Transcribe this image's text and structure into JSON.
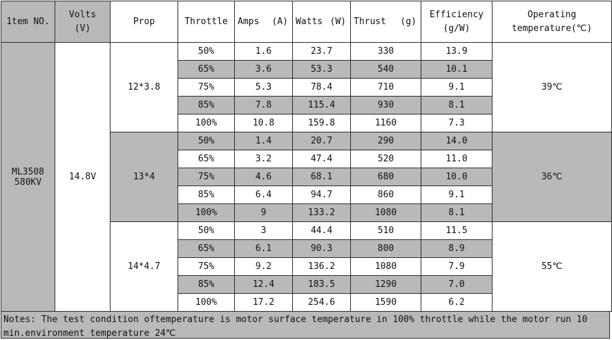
{
  "headers": {
    "item_no": "1tem NO.",
    "volts": "Volts",
    "volts_unit": "(V)",
    "prop": "Prop",
    "throttle": "Throttle",
    "amps": "Amps",
    "amps_unit": "(A)",
    "watts": "Watts",
    "watts_unit": "(W)",
    "thrust": "Thrust",
    "thrust_unit": "(g)",
    "efficiency": "Efficiency",
    "efficiency_unit": "(g/W)",
    "operating_temp_line1": "Operating",
    "operating_temp_line2": "temperature(℃)"
  },
  "item": {
    "model": "ML3508",
    "kv": "580KV",
    "volts": "14.8V"
  },
  "props": [
    {
      "name": "12*3.8",
      "temperature": "39℃",
      "rows": [
        {
          "throttle": "50%",
          "amps": "1.6",
          "watts": "23.7",
          "thrust": "330",
          "efficiency": "13.9"
        },
        {
          "throttle": "65%",
          "amps": "3.6",
          "watts": "53.3",
          "thrust": "540",
          "efficiency": "10.1"
        },
        {
          "throttle": "75%",
          "amps": "5.3",
          "watts": "78.4",
          "thrust": "710",
          "efficiency": "9.1"
        },
        {
          "throttle": "85%",
          "amps": "7.8",
          "watts": "115.4",
          "thrust": "930",
          "efficiency": "8.1"
        },
        {
          "throttle": "100%",
          "amps": "10.8",
          "watts": "159.8",
          "thrust": "1160",
          "efficiency": "7.3"
        }
      ]
    },
    {
      "name": "13*4",
      "temperature": "36℃",
      "rows": [
        {
          "throttle": "50%",
          "amps": "1.4",
          "watts": "20.7",
          "thrust": "290",
          "efficiency": "14.0"
        },
        {
          "throttle": "65%",
          "amps": "3.2",
          "watts": "47.4",
          "thrust": "520",
          "efficiency": "11.0"
        },
        {
          "throttle": "75%",
          "amps": "4.6",
          "watts": "68.1",
          "thrust": "680",
          "efficiency": "10.0"
        },
        {
          "throttle": "85%",
          "amps": "6.4",
          "watts": "94.7",
          "thrust": "860",
          "efficiency": "9.1"
        },
        {
          "throttle": "100%",
          "amps": "9",
          "watts": "133.2",
          "thrust": "1080",
          "efficiency": "8.1"
        }
      ]
    },
    {
      "name": "14*4.7",
      "temperature": "55℃",
      "rows": [
        {
          "throttle": "50%",
          "amps": "3",
          "watts": "44.4",
          "thrust": "510",
          "efficiency": "11.5"
        },
        {
          "throttle": "65%",
          "amps": "6.1",
          "watts": "90.3",
          "thrust": "800",
          "efficiency": "8.9"
        },
        {
          "throttle": "75%",
          "amps": "9.2",
          "watts": "136.2",
          "thrust": "1080",
          "efficiency": "7.9"
        },
        {
          "throttle": "85%",
          "amps": "12.4",
          "watts": "183.5",
          "thrust": "1290",
          "efficiency": "7.0"
        },
        {
          "throttle": "100%",
          "amps": "17.2",
          "watts": "254.6",
          "thrust": "1590",
          "efficiency": "6.2"
        }
      ]
    }
  ],
  "notes": "Notes: The test condition oftemperature is motor surface temperature in 100% throttle while the motor run 10 min.environment temperature 24℃",
  "colors": {
    "shade": "#b9b9b9",
    "border": "#2b2b2b"
  }
}
